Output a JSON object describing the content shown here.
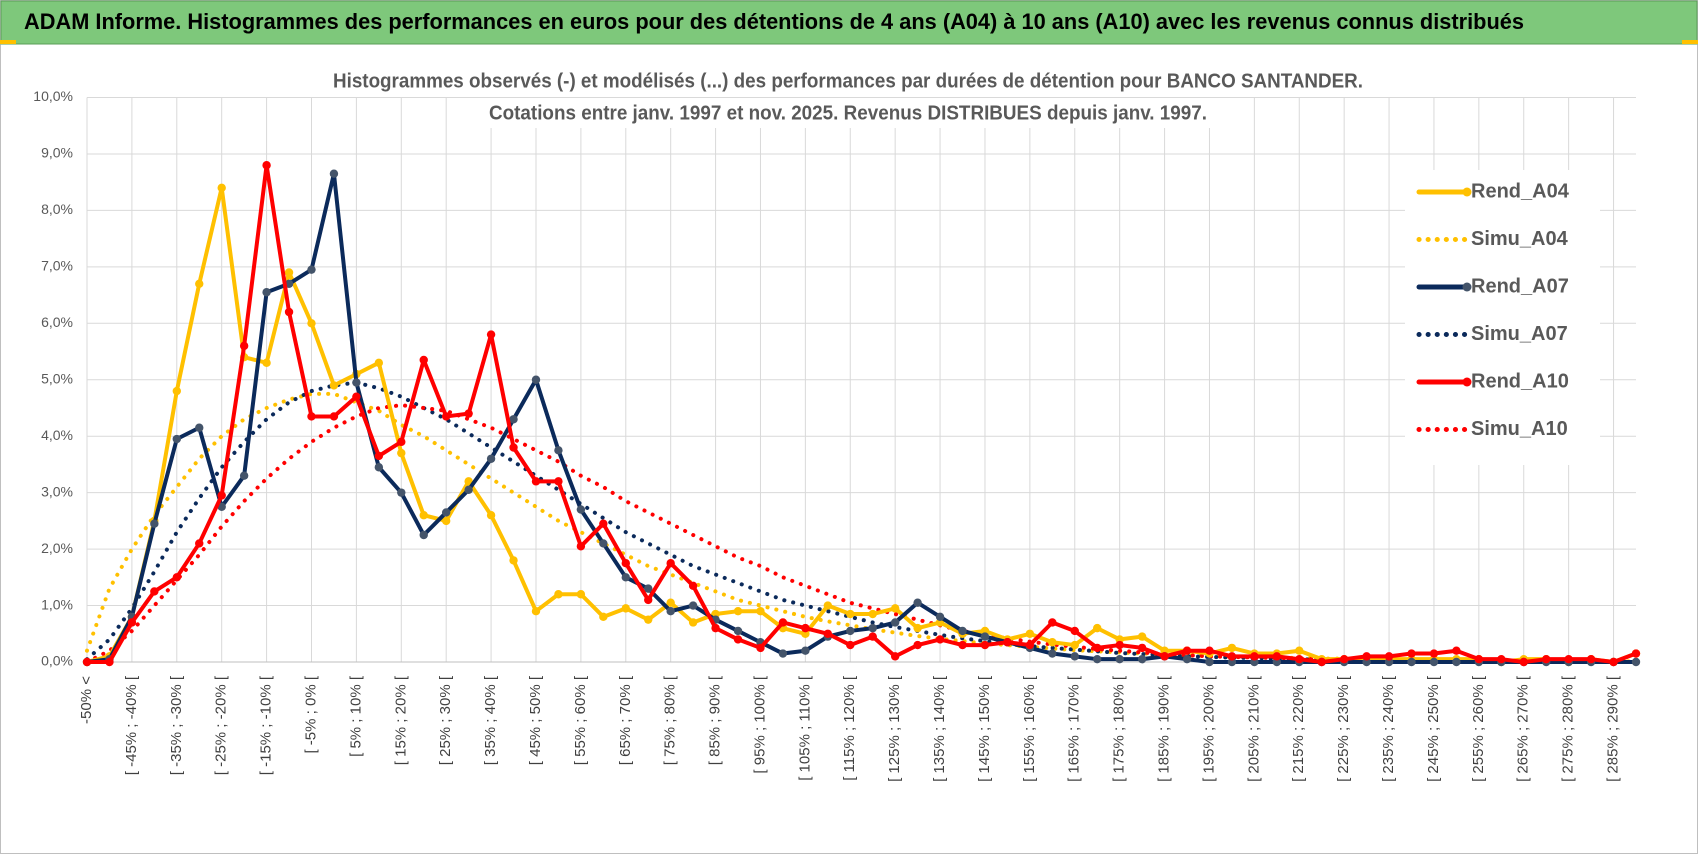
{
  "header": "ADAM Informe. Histogrammes des performances en euros pour des détentions de 4 ans (A04) à 10 ans (A10) avec les revenus connus distribués",
  "chart_data": {
    "type": "line",
    "title": "Histogrammes observés (-) et modélisés (...) des performances par durées de détention pour BANCO SANTANDER.",
    "subtitle": "Cotations entre janv. 1997 et nov. 2025. Revenus DISTRIBUES depuis janv. 1997.",
    "categories": [
      "-50% <",
      null,
      "[ -45% ; -40% [",
      null,
      "[ -35% ; -30% [",
      null,
      "[ -25% ; -20% [",
      null,
      "[ -15% ; -10% [",
      null,
      "[ -5% ; 0% [",
      null,
      "[ 5% ; 10% [",
      null,
      "[ 15% ; 20% [",
      null,
      "[ 25% ; 30% [",
      null,
      "[ 35% ; 40% [",
      null,
      "[ 45% ; 50% [",
      null,
      "[ 55% ; 60% [",
      null,
      "[ 65% ; 70% [",
      null,
      "[ 75% ; 80% [",
      null,
      "[ 85% ; 90% [",
      null,
      "[ 95% ; 100% [",
      null,
      "[ 105% ; 110% [",
      null,
      "[ 115% ; 120% [",
      null,
      "[ 125% ; 130% [",
      null,
      "[ 135% ; 140% [",
      null,
      "[ 145% ; 150% [",
      null,
      "[ 155% ; 160% [",
      null,
      "[ 165% ; 170% [",
      null,
      "[ 175% ; 180% [",
      null,
      "[ 185% ; 190% [",
      null,
      "[ 195% ; 200% [",
      null,
      "[ 205% ; 210% [",
      null,
      "[ 215% ; 220% [",
      null,
      "[ 225% ; 230% [",
      null,
      "[ 235% ; 240% [",
      null,
      "[ 245% ; 250% [",
      null,
      "[ 255% ; 260% [",
      null,
      "[ 265% ; 270% [",
      null,
      "[ 275% ; 280% [",
      null,
      "[ 285% ; 290% [",
      null
    ],
    "series": [
      {
        "name": "Rend_A04",
        "color": "#ffc000",
        "style": "solid",
        "marker": true,
        "values": [
          0.0,
          0.1,
          0.8,
          2.5,
          4.8,
          6.7,
          8.4,
          5.4,
          5.3,
          6.9,
          6.0,
          4.9,
          5.1,
          5.3,
          3.7,
          2.6,
          2.5,
          3.2,
          2.6,
          1.8,
          0.9,
          1.2,
          1.2,
          0.8,
          0.95,
          0.75,
          1.05,
          0.7,
          0.85,
          0.9,
          0.9,
          0.6,
          0.5,
          1.0,
          0.85,
          0.85,
          0.95,
          0.6,
          0.7,
          0.5,
          0.55,
          0.4,
          0.5,
          0.35,
          0.3,
          0.6,
          0.4,
          0.45,
          0.2,
          0.2,
          0.15,
          0.25,
          0.15,
          0.15,
          0.2,
          0.05,
          0.05,
          0.05,
          0.05,
          0.05,
          0.05,
          0.05,
          0.05,
          0.0,
          0.05,
          0.05,
          0.0,
          0.05,
          0.0,
          0.15
        ]
      },
      {
        "name": "Simu_A04",
        "color": "#ffc000",
        "style": "dotted",
        "marker": false,
        "values": [
          0.2,
          1.3,
          2.0,
          2.6,
          3.1,
          3.6,
          4.0,
          4.3,
          4.5,
          4.65,
          4.75,
          4.75,
          4.6,
          4.45,
          4.2,
          4.0,
          3.75,
          3.5,
          3.25,
          3.0,
          2.75,
          2.5,
          2.3,
          2.1,
          1.9,
          1.7,
          1.55,
          1.4,
          1.25,
          1.1,
          1.0,
          0.9,
          0.8,
          0.72,
          0.65,
          0.58,
          0.52,
          0.46,
          0.41,
          0.37,
          0.33,
          0.3,
          0.27,
          0.24,
          0.21,
          0.19,
          0.17,
          0.15,
          0.14,
          0.12,
          0.11,
          0.1,
          0.09,
          0.08,
          0.07,
          0.06,
          0.06,
          0.05,
          0.05,
          0.04,
          0.04,
          0.03,
          0.03,
          0.03,
          0.02,
          0.02,
          0.02,
          0.02,
          0.01,
          0.01
        ]
      },
      {
        "name": "Rend_A07",
        "color": "#0b2a5b",
        "style": "solid",
        "marker": true,
        "values": [
          0.0,
          0.05,
          0.8,
          2.45,
          3.95,
          4.15,
          2.75,
          3.3,
          6.55,
          6.7,
          6.95,
          8.65,
          4.95,
          3.45,
          3.0,
          2.25,
          2.65,
          3.05,
          3.6,
          4.3,
          5.0,
          3.75,
          2.7,
          2.1,
          1.5,
          1.3,
          0.9,
          1.0,
          0.75,
          0.55,
          0.35,
          0.15,
          0.2,
          0.45,
          0.55,
          0.6,
          0.7,
          1.05,
          0.8,
          0.55,
          0.45,
          0.35,
          0.25,
          0.15,
          0.1,
          0.05,
          0.05,
          0.05,
          0.1,
          0.05,
          0.0,
          0.0,
          0.0,
          0.0,
          0.0,
          0.0,
          0.0,
          0.0,
          0.0,
          0.0,
          0.0,
          0.0,
          0.0,
          0.0,
          0.0,
          0.0,
          0.0,
          0.0,
          0.0,
          0.0
        ]
      },
      {
        "name": "Simu_A07",
        "color": "#0b2a5b",
        "style": "dotted",
        "marker": false,
        "values": [
          0.05,
          0.4,
          0.95,
          1.6,
          2.3,
          2.9,
          3.45,
          3.9,
          4.3,
          4.6,
          4.8,
          4.9,
          4.95,
          4.85,
          4.7,
          4.5,
          4.3,
          4.05,
          3.8,
          3.55,
          3.3,
          3.05,
          2.8,
          2.55,
          2.3,
          2.1,
          1.9,
          1.7,
          1.55,
          1.4,
          1.25,
          1.1,
          1.0,
          0.9,
          0.8,
          0.7,
          0.62,
          0.55,
          0.48,
          0.42,
          0.37,
          0.32,
          0.28,
          0.25,
          0.22,
          0.19,
          0.16,
          0.14,
          0.12,
          0.1,
          0.09,
          0.08,
          0.07,
          0.06,
          0.05,
          0.04,
          0.04,
          0.03,
          0.03,
          0.02,
          0.02,
          0.02,
          0.01,
          0.01,
          0.01,
          0.01,
          0.01,
          0.0,
          0.0,
          0.0
        ]
      },
      {
        "name": "Rend_A10",
        "color": "#ff0000",
        "style": "solid",
        "marker": true,
        "values": [
          0.0,
          0.0,
          0.7,
          1.25,
          1.5,
          2.1,
          2.95,
          5.6,
          8.8,
          6.2,
          4.35,
          4.35,
          4.7,
          3.65,
          3.9,
          5.35,
          4.35,
          4.4,
          5.8,
          3.8,
          3.2,
          3.2,
          2.05,
          2.45,
          1.75,
          1.1,
          1.75,
          1.35,
          0.6,
          0.4,
          0.25,
          0.7,
          0.6,
          0.5,
          0.3,
          0.45,
          0.1,
          0.3,
          0.4,
          0.3,
          0.3,
          0.35,
          0.3,
          0.7,
          0.55,
          0.25,
          0.3,
          0.25,
          0.1,
          0.2,
          0.2,
          0.1,
          0.1,
          0.1,
          0.05,
          0.0,
          0.05,
          0.1,
          0.1,
          0.15,
          0.15,
          0.2,
          0.05,
          0.05,
          0.0,
          0.05,
          0.05,
          0.05,
          0.0,
          0.15
        ]
      },
      {
        "name": "Simu_A10",
        "color": "#ff0000",
        "style": "dotted",
        "marker": false,
        "values": [
          0.0,
          0.2,
          0.55,
          1.0,
          1.45,
          1.9,
          2.4,
          2.85,
          3.25,
          3.6,
          3.9,
          4.15,
          4.35,
          4.5,
          4.55,
          4.5,
          4.45,
          4.3,
          4.15,
          3.95,
          3.75,
          3.55,
          3.3,
          3.1,
          2.85,
          2.65,
          2.45,
          2.25,
          2.05,
          1.85,
          1.7,
          1.5,
          1.35,
          1.2,
          1.05,
          0.95,
          0.85,
          0.75,
          0.65,
          0.55,
          0.48,
          0.42,
          0.36,
          0.31,
          0.27,
          0.23,
          0.2,
          0.17,
          0.14,
          0.12,
          0.1,
          0.09,
          0.08,
          0.07,
          0.06,
          0.05,
          0.04,
          0.04,
          0.03,
          0.03,
          0.02,
          0.02,
          0.02,
          0.01,
          0.01,
          0.01,
          0.01,
          0.01,
          0.0,
          0.0
        ]
      }
    ],
    "ylim": [
      0,
      10
    ],
    "yticks": [
      {
        "value": 0,
        "label": "0,0%"
      },
      {
        "value": 1,
        "label": "1,0%"
      },
      {
        "value": 2,
        "label": "2,0%"
      },
      {
        "value": 3,
        "label": "3,0%"
      },
      {
        "value": 4,
        "label": "4,0%"
      },
      {
        "value": 5,
        "label": "5,0%"
      },
      {
        "value": 6,
        "label": "6,0%"
      },
      {
        "value": 7,
        "label": "7,0%"
      },
      {
        "value": 8,
        "label": "8,0%"
      },
      {
        "value": 9,
        "label": "9,0%"
      },
      {
        "value": 10,
        "label": "10,0%"
      }
    ],
    "grid": true,
    "legend": "right"
  }
}
